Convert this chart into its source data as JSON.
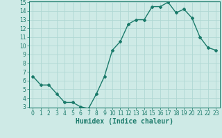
{
  "x": [
    0,
    1,
    2,
    3,
    4,
    5,
    6,
    7,
    8,
    9,
    10,
    11,
    12,
    13,
    14,
    15,
    16,
    17,
    18,
    19,
    20,
    21,
    22,
    23
  ],
  "y": [
    6.5,
    5.5,
    5.5,
    4.5,
    3.5,
    3.5,
    3.0,
    2.8,
    4.5,
    6.5,
    9.5,
    10.5,
    12.5,
    13.0,
    13.0,
    14.5,
    14.5,
    15.0,
    13.8,
    14.2,
    13.2,
    11.0,
    9.8,
    9.5
  ],
  "line_color": "#1a7a6a",
  "marker": "D",
  "marker_size": 2.0,
  "bg_color": "#ceeae6",
  "grid_color": "#b0d8d3",
  "xlabel": "Humidex (Indice chaleur)",
  "ylabel": "",
  "ylim": [
    3,
    15
  ],
  "xlim": [
    -0.5,
    23.5
  ],
  "yticks": [
    3,
    4,
    5,
    6,
    7,
    8,
    9,
    10,
    11,
    12,
    13,
    14,
    15
  ],
  "xticks": [
    0,
    1,
    2,
    3,
    4,
    5,
    6,
    7,
    8,
    9,
    10,
    11,
    12,
    13,
    14,
    15,
    16,
    17,
    18,
    19,
    20,
    21,
    22,
    23
  ],
  "tick_fontsize": 5.5,
  "label_fontsize": 7,
  "line_width": 1.0
}
